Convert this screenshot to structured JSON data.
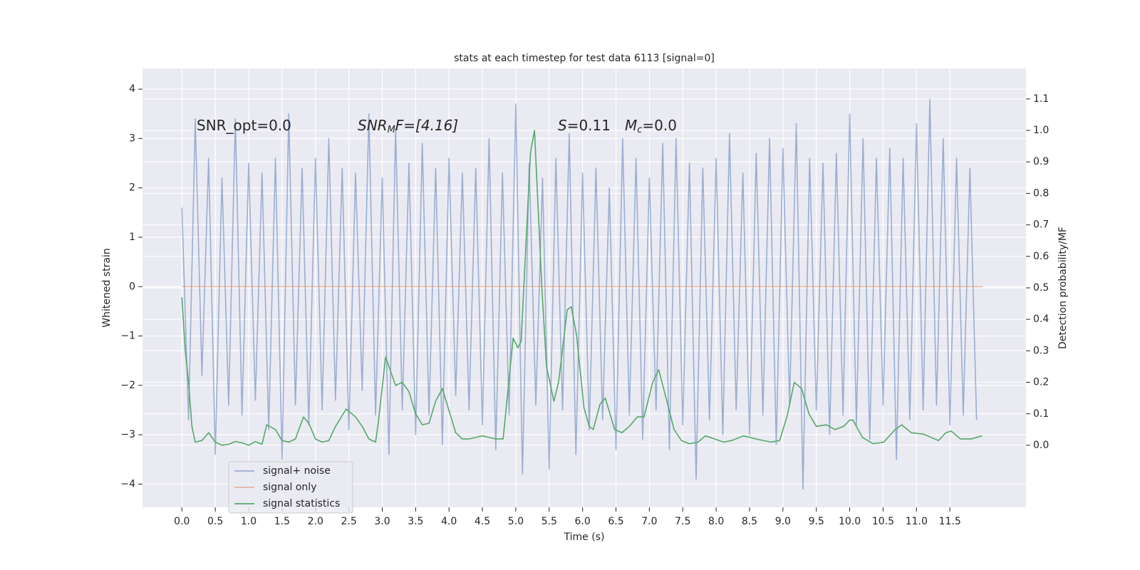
{
  "chart_data": {
    "type": "line",
    "title": "stats at each timestep for test data 6113 [signal=0]",
    "xlabel": "Time (s)",
    "ylabel": "Whitened strain",
    "y2label": "Detection probability/MF",
    "annotations": [
      [
        "SNR_opt=0.0"
      ],
      [
        "SNR",
        "M",
        "F=[4.16]"
      ],
      [
        "S",
        "=0.11"
      ],
      [
        "M",
        "c",
        "=0.0"
      ]
    ],
    "xlim": [
      -0.59,
      12.64
    ],
    "ylim": [
      -4.47,
      4.42
    ],
    "y2lim": [
      -0.197,
      1.197
    ],
    "xticks": [
      {
        "value": 0,
        "label": "0.0"
      },
      0.5,
      {
        "value": 1,
        "label": "1.0"
      },
      1.5,
      {
        "value": 2,
        "label": "2.0"
      },
      2.5,
      {
        "value": 3,
        "label": "3.0"
      },
      3.5,
      {
        "value": 4,
        "label": "4.0"
      },
      4.5,
      {
        "value": 5,
        "label": "5.0"
      },
      5.5,
      {
        "value": 6,
        "label": "6.0"
      },
      6.5,
      {
        "value": 7,
        "label": "7.0"
      },
      7.5,
      {
        "value": 8,
        "label": "8.0"
      },
      8.5,
      {
        "value": 9,
        "label": "9.0"
      },
      9.5,
      {
        "value": 10,
        "label": "10.0"
      },
      10.5,
      {
        "value": 11,
        "label": "11.0"
      },
      11.5
    ],
    "yticks": [
      {
        "value": -4,
        "label": "−4"
      },
      {
        "value": -3,
        "label": "−3"
      },
      {
        "value": -2,
        "label": "−2"
      },
      {
        "value": -1,
        "label": "−1"
      },
      0,
      1,
      2,
      3,
      4
    ],
    "y2ticks": [
      {
        "value": 0,
        "label": "0.0"
      },
      0.1,
      0.2,
      0.3,
      0.4,
      0.5,
      0.6,
      0.7,
      0.8,
      0.9,
      {
        "value": 1,
        "label": "1.0"
      },
      1.1
    ],
    "grid": true,
    "legend_loc": "lower left",
    "series": [
      {
        "name": "signal+ noise",
        "color": "#4c72b0",
        "opacity": 0.5,
        "x": [
          0.0,
          0.1,
          0.2,
          0.3,
          0.4,
          0.5,
          0.6,
          0.7,
          0.8,
          0.9,
          1.0,
          1.1,
          1.2,
          1.3,
          1.4,
          1.5,
          1.6,
          1.7,
          1.8,
          1.9,
          2.0,
          2.1,
          2.2,
          2.3,
          2.4,
          2.5,
          2.6,
          2.7,
          2.8,
          2.9,
          3.0,
          3.1,
          3.2,
          3.3,
          3.4,
          3.5,
          3.6,
          3.7,
          3.8,
          3.9,
          4.0,
          4.1,
          4.2,
          4.3,
          4.4,
          4.5,
          4.6,
          4.7,
          4.8,
          4.9,
          5.0,
          5.1,
          5.2,
          5.3,
          5.4,
          5.5,
          5.6,
          5.7,
          5.8,
          5.9,
          6.0,
          6.1,
          6.2,
          6.3,
          6.4,
          6.5,
          6.6,
          6.7,
          6.8,
          6.9,
          7.0,
          7.1,
          7.2,
          7.3,
          7.4,
          7.5,
          7.6,
          7.7,
          7.8,
          7.9,
          8.0,
          8.1,
          8.2,
          8.3,
          8.4,
          8.5,
          8.6,
          8.7,
          8.8,
          8.9,
          9.0,
          9.1,
          9.2,
          9.3,
          9.4,
          9.5,
          9.6,
          9.7,
          9.8,
          9.9,
          10.0,
          10.1,
          10.2,
          10.3,
          10.4,
          10.5,
          10.6,
          10.7,
          10.8,
          10.9,
          11.0,
          11.1,
          11.2,
          11.3,
          11.4,
          11.5,
          11.6,
          11.7,
          11.8,
          11.9
        ],
        "values": [
          1.6,
          -2.7,
          3.4,
          -1.8,
          2.6,
          -3.4,
          2.2,
          -2.4,
          3.4,
          -2.6,
          2.5,
          -2.3,
          2.3,
          -2.9,
          2.6,
          -3.5,
          3.5,
          -2.4,
          2.4,
          -2.8,
          2.6,
          -2.5,
          3.0,
          -2.3,
          2.4,
          -2.9,
          2.3,
          -2.1,
          3.5,
          -2.6,
          2.2,
          -3.4,
          3.2,
          -2.5,
          2.5,
          -3.0,
          2.9,
          -2.6,
          2.4,
          -3.2,
          2.6,
          -2.2,
          2.3,
          -2.5,
          2.4,
          -2.8,
          3.0,
          -3.3,
          2.3,
          -2.6,
          3.7,
          -3.8,
          2.5,
          -2.4,
          2.2,
          -3.7,
          2.6,
          -2.5,
          3.1,
          -3.4,
          2.3,
          -2.9,
          2.4,
          -2.7,
          2.0,
          -3.3,
          3.0,
          -2.6,
          2.6,
          -3.1,
          2.2,
          -2.5,
          2.9,
          -3.3,
          3.0,
          -2.8,
          2.5,
          -3.9,
          2.4,
          -2.7,
          2.6,
          -3.0,
          3.1,
          -2.5,
          2.3,
          -3.0,
          2.7,
          -2.6,
          3.0,
          -3.2,
          2.8,
          -2.4,
          3.3,
          -4.1,
          2.6,
          -2.5,
          2.5,
          -3.0,
          2.7,
          -2.6,
          3.5,
          -2.8,
          3.0,
          -3.1,
          2.6,
          -2.4,
          2.8,
          -3.5,
          2.6,
          -2.7,
          3.3,
          -2.5,
          3.8,
          -2.4,
          3.0,
          -2.8,
          2.6,
          -2.6,
          2.4,
          -2.7
        ]
      },
      {
        "name": "signal only",
        "color": "#dd8452",
        "opacity": 0.5,
        "x": [
          0.0,
          11.99
        ],
        "values": [
          0,
          0
        ]
      },
      {
        "name": "signal statistics",
        "color": "#55a868",
        "opacity": 1,
        "axis": "y2",
        "x": [
          0.0,
          0.05,
          0.1,
          0.15,
          0.2,
          0.3,
          0.4,
          0.5,
          0.6,
          0.7,
          0.8,
          0.9,
          1.0,
          1.1,
          1.2,
          1.27,
          1.4,
          1.5,
          1.6,
          1.7,
          1.82,
          1.9,
          2.0,
          2.1,
          2.2,
          2.3,
          2.46,
          2.6,
          2.7,
          2.8,
          2.9,
          2.94,
          3.05,
          3.2,
          3.3,
          3.4,
          3.5,
          3.6,
          3.7,
          3.8,
          3.9,
          4.0,
          4.1,
          4.2,
          4.3,
          4.4,
          4.5,
          4.6,
          4.7,
          4.81,
          4.96,
          5.03,
          5.08,
          5.22,
          5.28,
          5.39,
          5.46,
          5.57,
          5.64,
          5.77,
          5.83,
          5.91,
          6.02,
          6.1,
          6.16,
          6.26,
          6.34,
          6.48,
          6.59,
          6.7,
          6.82,
          6.92,
          7.05,
          7.14,
          7.25,
          7.37,
          7.48,
          7.6,
          7.73,
          7.84,
          7.98,
          8.11,
          8.23,
          8.41,
          8.6,
          8.82,
          8.95,
          9.06,
          9.17,
          9.28,
          9.39,
          9.5,
          9.65,
          9.78,
          9.91,
          10.0,
          10.05,
          10.19,
          10.35,
          10.51,
          10.68,
          10.78,
          10.92,
          11.11,
          11.33,
          11.44,
          11.52,
          11.66,
          11.82,
          11.98
        ],
        "values": [
          0.47,
          0.3,
          0.2,
          0.06,
          0.01,
          0.015,
          0.04,
          0.01,
          0.0,
          0.003,
          0.012,
          0.008,
          0.0,
          0.012,
          0.003,
          0.065,
          0.05,
          0.015,
          0.01,
          0.02,
          0.09,
          0.07,
          0.02,
          0.01,
          0.015,
          0.06,
          0.115,
          0.09,
          0.06,
          0.02,
          0.01,
          0.07,
          0.28,
          0.19,
          0.2,
          0.17,
          0.1,
          0.065,
          0.07,
          0.14,
          0.18,
          0.11,
          0.04,
          0.02,
          0.02,
          0.025,
          0.03,
          0.025,
          0.02,
          0.02,
          0.34,
          0.31,
          0.33,
          0.93,
          1.0,
          0.5,
          0.25,
          0.14,
          0.2,
          0.43,
          0.44,
          0.35,
          0.12,
          0.06,
          0.05,
          0.13,
          0.15,
          0.05,
          0.04,
          0.06,
          0.09,
          0.09,
          0.2,
          0.24,
          0.15,
          0.05,
          0.015,
          0.005,
          0.01,
          0.03,
          0.02,
          0.01,
          0.015,
          0.03,
          0.02,
          0.01,
          0.015,
          0.09,
          0.2,
          0.18,
          0.1,
          0.06,
          0.065,
          0.05,
          0.06,
          0.08,
          0.08,
          0.025,
          0.005,
          0.01,
          0.05,
          0.065,
          0.04,
          0.035,
          0.015,
          0.04,
          0.045,
          0.02,
          0.02,
          0.03
        ]
      }
    ]
  }
}
